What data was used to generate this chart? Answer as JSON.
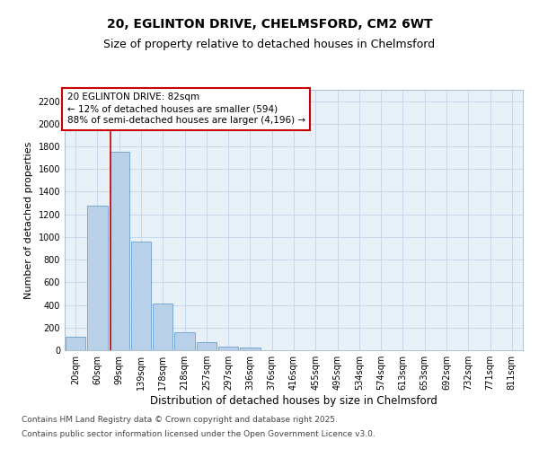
{
  "title1": "20, EGLINTON DRIVE, CHELMSFORD, CM2 6WT",
  "title2": "Size of property relative to detached houses in Chelmsford",
  "xlabel": "Distribution of detached houses by size in Chelmsford",
  "ylabel": "Number of detached properties",
  "categories": [
    "20sqm",
    "60sqm",
    "99sqm",
    "139sqm",
    "178sqm",
    "218sqm",
    "257sqm",
    "297sqm",
    "336sqm",
    "376sqm",
    "416sqm",
    "455sqm",
    "495sqm",
    "534sqm",
    "574sqm",
    "613sqm",
    "653sqm",
    "692sqm",
    "732sqm",
    "771sqm",
    "811sqm"
  ],
  "values": [
    120,
    1275,
    1755,
    960,
    415,
    155,
    75,
    35,
    22,
    0,
    0,
    0,
    0,
    0,
    0,
    0,
    0,
    0,
    0,
    0,
    0
  ],
  "bar_color": "#b8d0e8",
  "bar_edge_color": "#6aa0cc",
  "vline_x": 1.62,
  "vline_color": "#cc0000",
  "annotation_text": "20 EGLINTON DRIVE: 82sqm\n← 12% of detached houses are smaller (594)\n88% of semi-detached houses are larger (4,196) →",
  "annotation_box_color": "#cc0000",
  "ylim": [
    0,
    2300
  ],
  "yticks": [
    0,
    200,
    400,
    600,
    800,
    1000,
    1200,
    1400,
    1600,
    1800,
    2000,
    2200
  ],
  "grid_color": "#c8d8ec",
  "bg_color": "#e8f0f8",
  "footer1": "Contains HM Land Registry data © Crown copyright and database right 2025.",
  "footer2": "Contains public sector information licensed under the Open Government Licence v3.0.",
  "title1_fontsize": 10,
  "title2_fontsize": 9,
  "xlabel_fontsize": 8.5,
  "ylabel_fontsize": 8,
  "tick_fontsize": 7,
  "annot_fontsize": 7.5,
  "footer_fontsize": 6.5
}
